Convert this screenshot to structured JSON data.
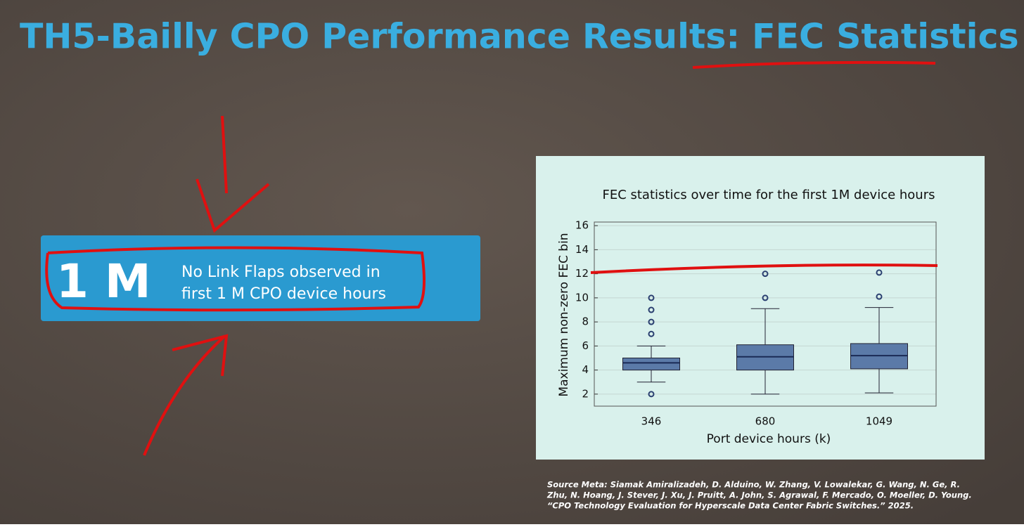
{
  "slide": {
    "title": "TH5-Bailly CPO Performance Results: FEC Statistics",
    "banner": {
      "big": "1 M",
      "lines": [
        "No Link Flaps observed in",
        "first 1 M CPO device hours"
      ]
    },
    "source": [
      "Source Meta: Siamak Amiralizadeh, D. Alduino, W. Zhang, V. Lowalekar, G. Wang, N. Ge, R.",
      "Zhu, N. Hoang, J. Stever, J. Xu, J. Pruitt, A. John, S. Agrawal, F. Mercado, O. Moeller, D. Young.",
      "“CPO Technology Evaluation for Hyperscale Data Center Fabric Switches.” 2025."
    ]
  },
  "chart_data": {
    "type": "box",
    "title": "FEC statistics over time for the first 1M device hours",
    "x_label": "Port device hours (k)",
    "y_label": "Maximum non-zero FEC bin",
    "categories": [
      "346",
      "680",
      "1049"
    ],
    "boxes": [
      {
        "whislo": 3,
        "q1": 4,
        "med": 4.6,
        "q3": 5,
        "whishi": 6,
        "fliers": [
          2,
          7,
          8,
          9,
          10
        ]
      },
      {
        "whislo": 2,
        "q1": 4,
        "med": 5.1,
        "q3": 6.1,
        "whishi": 9.1,
        "fliers": [
          10,
          12
        ]
      },
      {
        "whislo": 2.1,
        "q1": 4.1,
        "med": 5.2,
        "q3": 6.2,
        "whishi": 9.2,
        "fliers": [
          10.1,
          12.1
        ]
      }
    ],
    "color": "#5b7aa8",
    "ylim": [
      1,
      16.3
    ],
    "yticks": [
      2,
      4,
      6,
      8,
      10,
      12,
      14,
      16
    ],
    "grid": true
  }
}
